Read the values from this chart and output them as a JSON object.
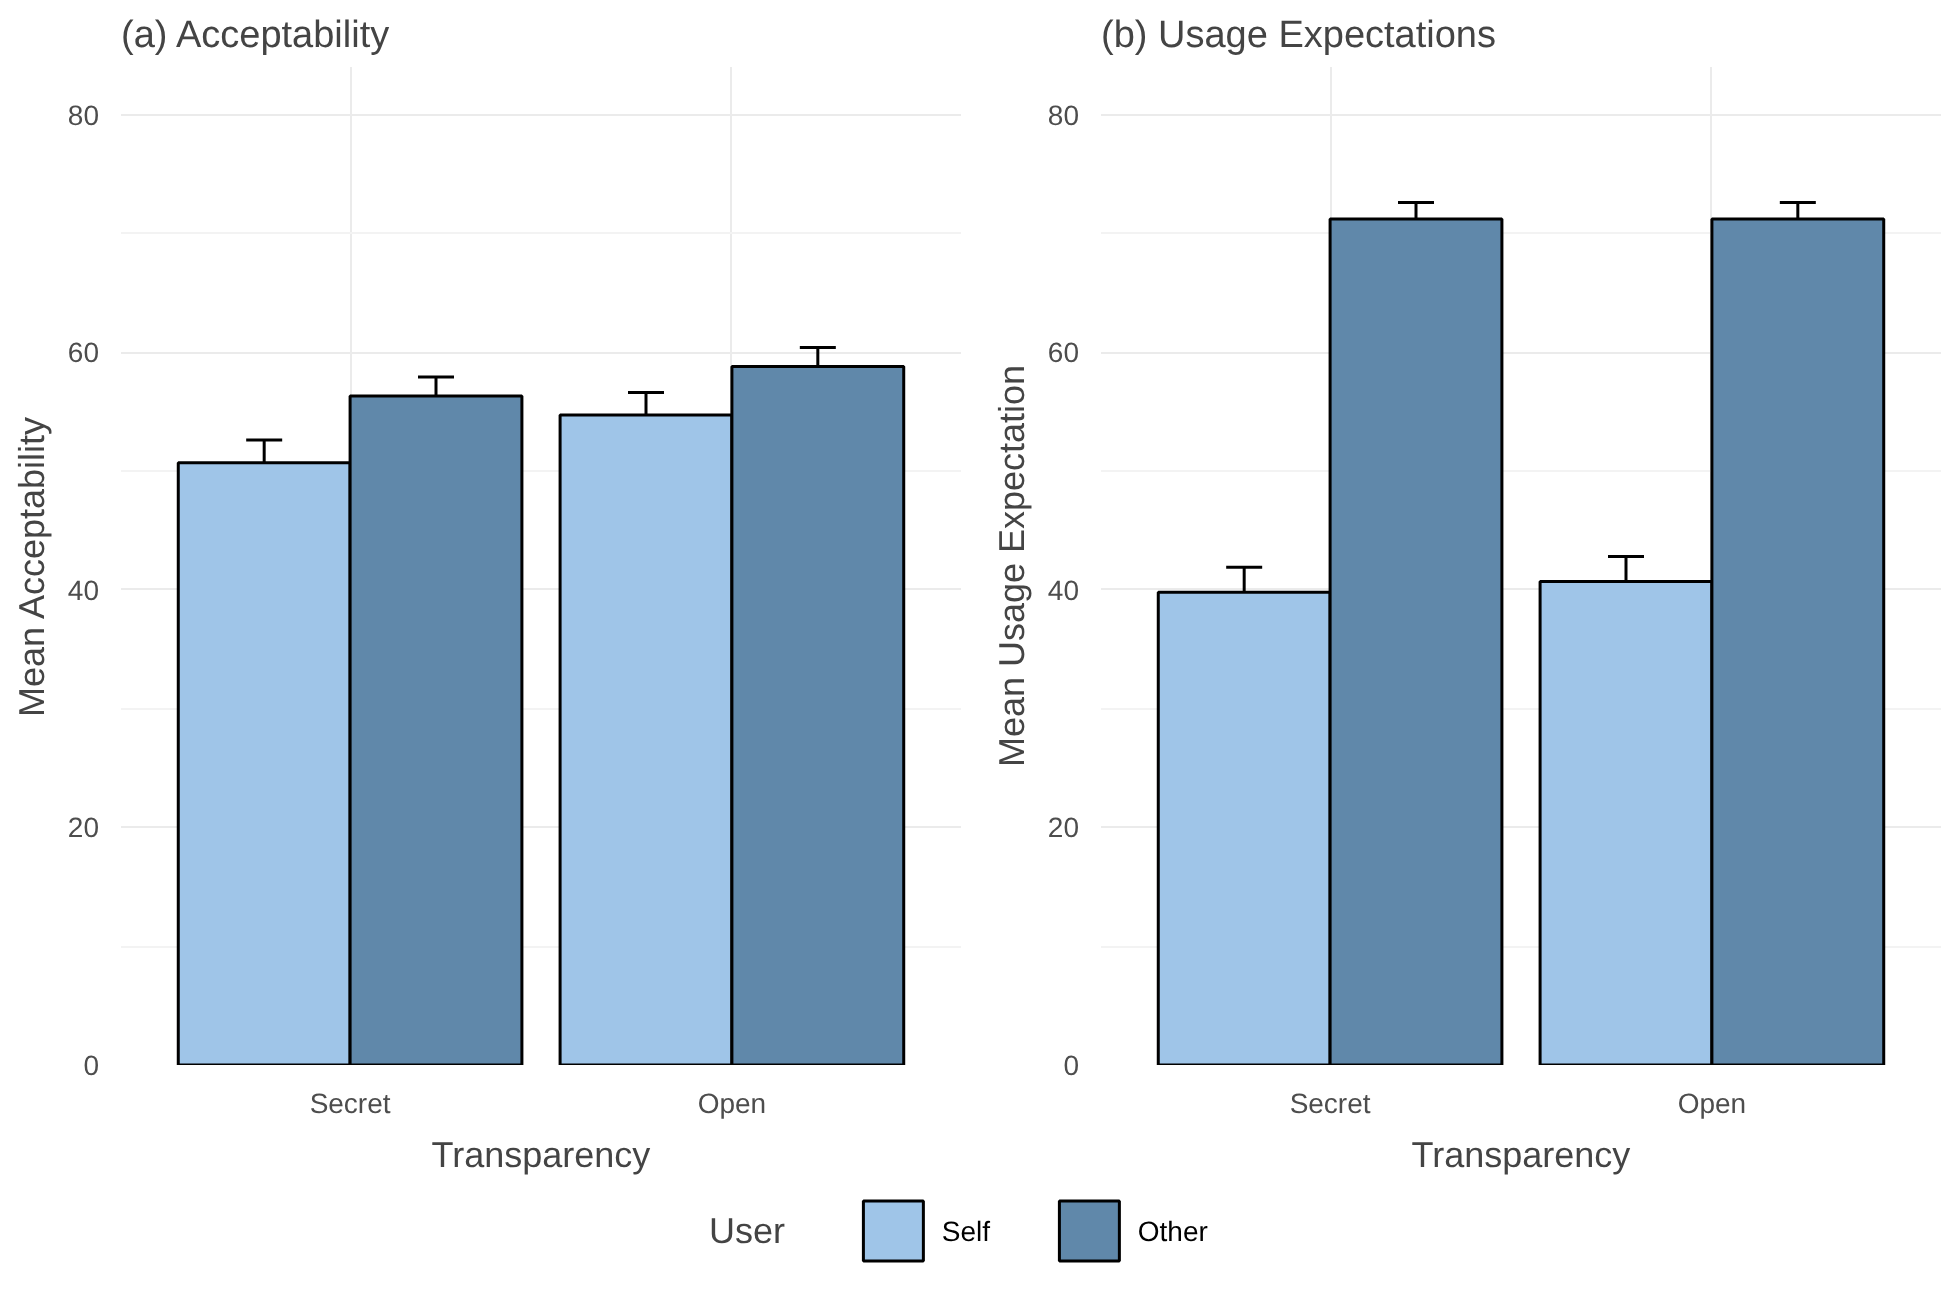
{
  "chart_data": [
    {
      "type": "bar",
      "title": "(a) Acceptability",
      "xlabel": "Transparency",
      "ylabel": "Mean Acceptability",
      "categories": [
        "Secret",
        "Open"
      ],
      "ylim": [
        0,
        84
      ],
      "yticks": [
        0,
        20,
        40,
        60,
        80
      ],
      "grid": true,
      "legend": "bottom",
      "legend_title": "User",
      "series": [
        {
          "name": "Self",
          "color": "#9fc5e8",
          "values": [
            50.7,
            54.7
          ],
          "errors": [
            1.9,
            1.9
          ]
        },
        {
          "name": "Other",
          "color": "#6088aa",
          "values": [
            56.3,
            58.8
          ],
          "errors": [
            1.6,
            1.6
          ]
        }
      ]
    },
    {
      "type": "bar",
      "title": "(b) Usage Expectations",
      "xlabel": "Transparency",
      "ylabel": "Mean Usage Expectation",
      "categories": [
        "Secret",
        "Open"
      ],
      "ylim": [
        0,
        84
      ],
      "yticks": [
        0,
        20,
        40,
        60,
        80
      ],
      "grid": true,
      "series": [
        {
          "color": "#9fc5e8",
          "values": [
            39.8,
            40.7
          ],
          "errors": [
            2.1,
            2.1
          ]
        },
        {
          "color": "#6088aa",
          "values": [
            71.2,
            71.2
          ],
          "errors": [
            1.4,
            1.4
          ]
        }
      ]
    }
  ]
}
